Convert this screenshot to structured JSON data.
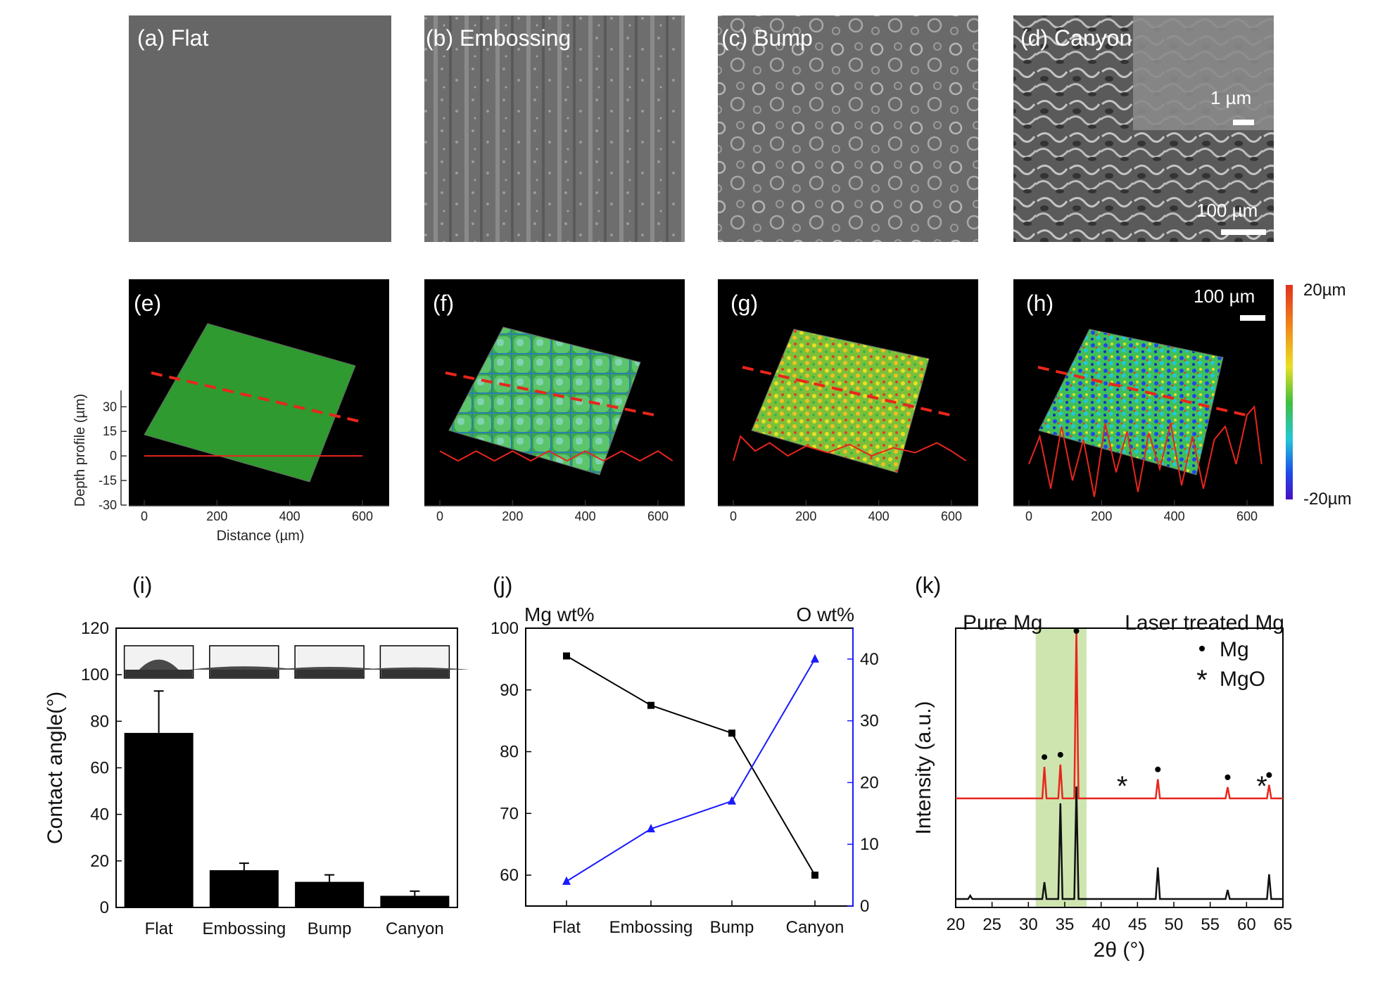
{
  "sem_panels": [
    {
      "label": "(a) Flat",
      "texture": "flat"
    },
    {
      "label": "(b) Embossing",
      "texture": "embossing"
    },
    {
      "label": "(c) Bump",
      "texture": "bump"
    },
    {
      "label": "(d) Canyon",
      "texture": "canyon",
      "inset_scale": "1 µm",
      "scale": "100 µm"
    }
  ],
  "profile_panels": [
    {
      "label": "(e)"
    },
    {
      "label": "(f)"
    },
    {
      "label": "(g)"
    },
    {
      "label": "(h)",
      "scale": "100 µm"
    }
  ],
  "colorbar": {
    "max": "20µm",
    "min": "-20µm"
  },
  "colors": {
    "accent_red": "#e8261c",
    "accent_blue": "#1a1aff",
    "surface_green": "#2f9a2f",
    "highlight_green": "#cfe5b0"
  },
  "chart_data": [
    {
      "id": "depth_profile",
      "type": "line",
      "title": "",
      "xlabel": "Distance (µm)",
      "ylabel": "Depth profile (µm)",
      "xlim": [
        -30,
        640
      ],
      "ylim": [
        -30,
        40
      ],
      "x_ticks": [
        "0",
        "200",
        "400",
        "600"
      ],
      "y_ticks": [
        "30",
        "15",
        "0",
        "-15",
        "-30"
      ],
      "series": [
        {
          "panel": "(e)",
          "x": [
            0,
            600
          ],
          "y": [
            0,
            0
          ]
        },
        {
          "panel": "(f)",
          "x": [
            0,
            50,
            100,
            150,
            200,
            250,
            300,
            350,
            400,
            450,
            500,
            550,
            600,
            640
          ],
          "y": [
            3,
            -3,
            3,
            -3,
            3,
            -3,
            3,
            -3,
            3,
            -3,
            3,
            -3,
            3,
            -3
          ]
        },
        {
          "panel": "(g)",
          "x": [
            0,
            20,
            60,
            100,
            150,
            200,
            260,
            320,
            380,
            440,
            500,
            560,
            600,
            640
          ],
          "y": [
            -3,
            12,
            3,
            8,
            0,
            6,
            2,
            7,
            0,
            5,
            2,
            8,
            3,
            -3
          ]
        },
        {
          "panel": "(h)",
          "x": [
            0,
            30,
            60,
            90,
            120,
            150,
            180,
            210,
            240,
            270,
            300,
            330,
            360,
            390,
            420,
            450,
            480,
            510,
            540,
            570,
            600,
            620,
            640
          ],
          "y": [
            -5,
            12,
            -20,
            18,
            -15,
            10,
            -25,
            20,
            -10,
            15,
            -22,
            14,
            -8,
            20,
            -18,
            12,
            -20,
            10,
            18,
            -5,
            25,
            30,
            -5
          ]
        }
      ]
    },
    {
      "id": "contact_angle",
      "type": "bar",
      "title": "",
      "ylabel": "Contact angle(°)",
      "categories": [
        "Flat",
        "Embossing",
        "Bump",
        "Canyon"
      ],
      "values": [
        75,
        16,
        11,
        5
      ],
      "errors": [
        18,
        3,
        3,
        2
      ],
      "ylim": [
        0,
        120
      ],
      "y_ticks": [
        "0",
        "20",
        "40",
        "60",
        "80",
        "100",
        "120"
      ]
    },
    {
      "id": "composition",
      "type": "line",
      "title": "",
      "categories": [
        "Flat",
        "Embossing",
        "Bump",
        "Canyon"
      ],
      "left_axis_label": "Mg wt%",
      "right_axis_label": "O wt%",
      "ylim_left": [
        55,
        100
      ],
      "ylim_right": [
        0,
        45
      ],
      "y_ticks_left": [
        "60",
        "70",
        "80",
        "90",
        "100"
      ],
      "y_ticks_right": [
        "0",
        "10",
        "20",
        "30",
        "40"
      ],
      "series": [
        {
          "name": "Mg wt%",
          "axis": "left",
          "color": "#000000",
          "marker": "square",
          "values": [
            95.5,
            87.5,
            83,
            60
          ]
        },
        {
          "name": "O wt%",
          "axis": "right",
          "color": "#1a1aff",
          "marker": "triangle",
          "values": [
            4,
            12.5,
            17,
            40
          ]
        }
      ]
    },
    {
      "id": "xrd",
      "type": "line",
      "title": "",
      "xlabel": "2θ (°)",
      "ylabel": "Intensity (a.u.)",
      "xlim": [
        20,
        65
      ],
      "x_ticks": [
        "20",
        "25",
        "30",
        "35",
        "40",
        "45",
        "50",
        "55",
        "60",
        "65"
      ],
      "highlight_range": [
        31,
        38
      ],
      "series": [
        {
          "name": "Pure Mg",
          "color": "#111111",
          "offset": 0,
          "peaks": [
            [
              22,
              3
            ],
            [
              32.2,
              15
            ],
            [
              34.4,
              85
            ],
            [
              36.6,
              100
            ],
            [
              47.8,
              28
            ],
            [
              57.4,
              8
            ],
            [
              63.1,
              22
            ]
          ]
        },
        {
          "name": "Laser treated Mg",
          "color": "#e8261c",
          "offset": 105,
          "peaks": [
            [
              32.2,
              28
            ],
            [
              34.4,
              30
            ],
            [
              36.6,
              185
            ],
            [
              47.8,
              17
            ],
            [
              57.4,
              10
            ],
            [
              63.1,
              12
            ]
          ]
        }
      ],
      "legend": [
        {
          "marker": "•",
          "label": "Mg"
        },
        {
          "marker": "*",
          "label": "MgO"
        }
      ],
      "annotations": [
        {
          "x": 32.2,
          "marker": "•"
        },
        {
          "x": 34.4,
          "marker": "•"
        },
        {
          "x": 36.6,
          "marker": "•"
        },
        {
          "x": 47.8,
          "marker": "•"
        },
        {
          "x": 57.4,
          "marker": "•"
        },
        {
          "x": 63.1,
          "marker": "•"
        },
        {
          "x": 42.9,
          "marker": "*"
        },
        {
          "x": 62.1,
          "marker": "*"
        }
      ],
      "panel_labels": [
        "(i)",
        "(j)",
        "(k)"
      ]
    }
  ]
}
